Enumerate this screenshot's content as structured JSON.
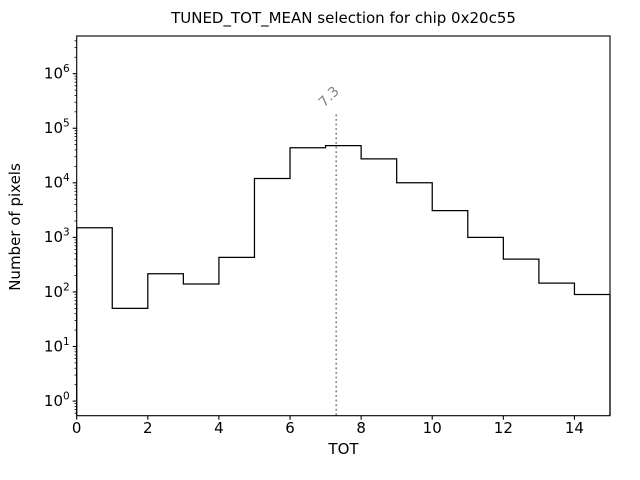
{
  "chart_data": {
    "type": "step-histogram",
    "title": "TUNED_TOT_MEAN selection for chip 0x20c55",
    "xlabel": "TOT",
    "ylabel": "Number of pixels",
    "x_scale": "linear",
    "y_scale": "log",
    "xlim": [
      0,
      15
    ],
    "ylim": [
      0.54,
      4900000
    ],
    "xticks": [
      0,
      2,
      4,
      6,
      8,
      10,
      12,
      14
    ],
    "ytick_exponents": [
      0,
      1,
      2,
      3,
      4,
      5,
      6
    ],
    "bin_edges": [
      0,
      1,
      2,
      3,
      4,
      5,
      6,
      7,
      8,
      9,
      10,
      11,
      12,
      13,
      14,
      15
    ],
    "counts": [
      1500,
      50,
      215,
      140,
      430,
      12000,
      44000,
      48000,
      27500,
      10000,
      3100,
      1000,
      400,
      145,
      90
    ],
    "grid": false,
    "legend": null,
    "marker": {
      "x": 7.3,
      "label": "7.3",
      "line_top": 200000,
      "style": "dotted"
    },
    "colors": {
      "line": "#000000",
      "axis": "#000000",
      "text": "#000000",
      "marker": "#858585",
      "background": "#ffffff"
    }
  }
}
